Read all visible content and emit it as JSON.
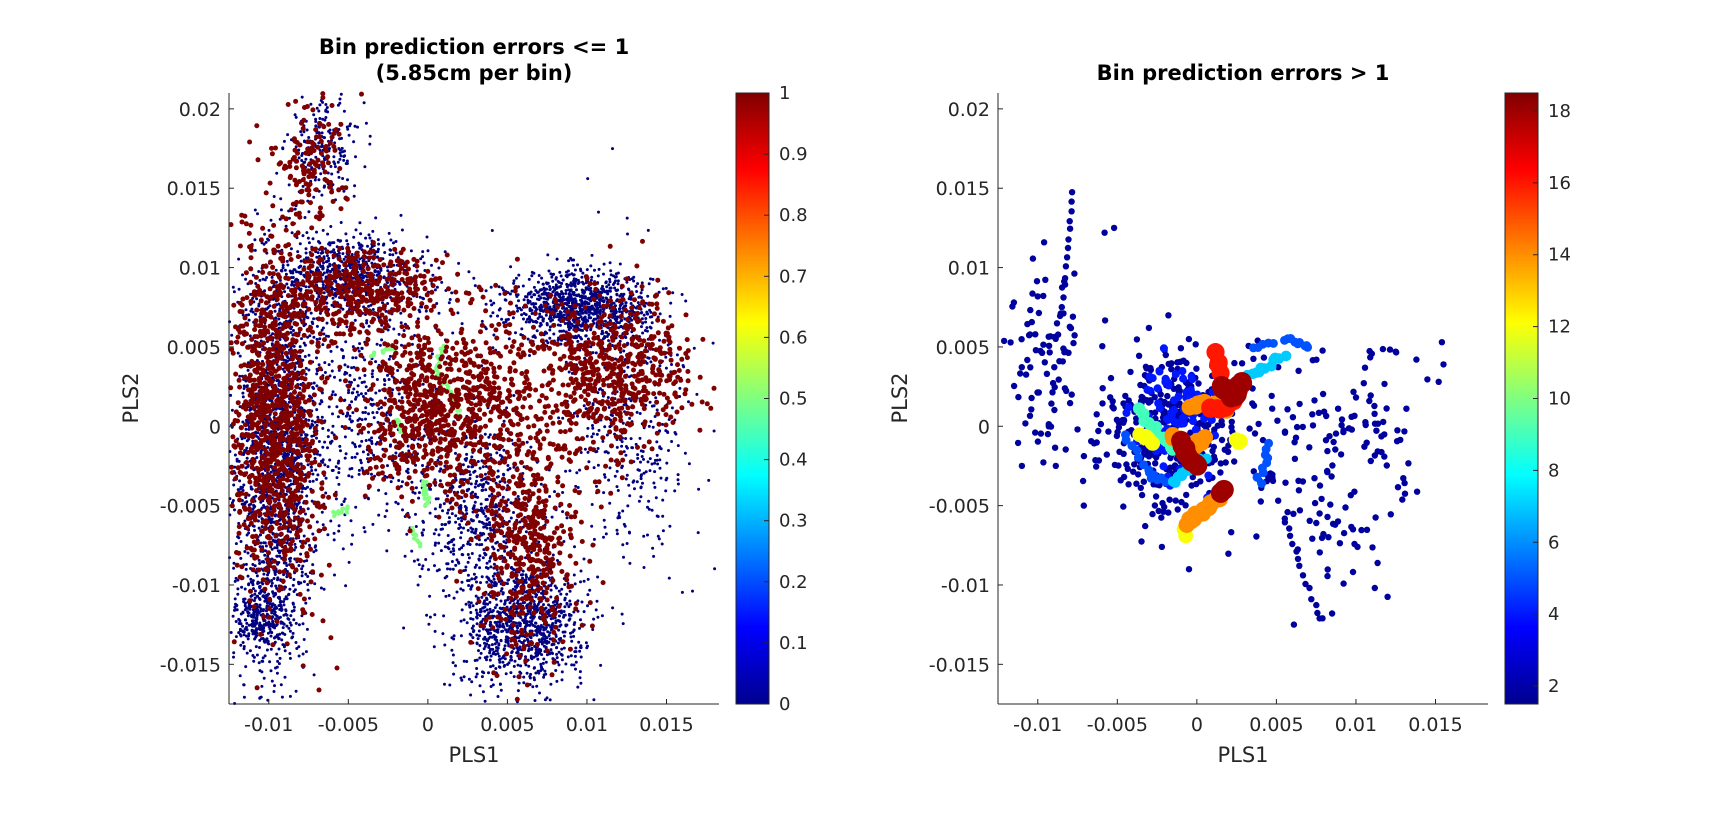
{
  "figure": {
    "background": "#ffffff",
    "colormap": "jet"
  },
  "chart_data": [
    {
      "type": "scatter",
      "title_lines": [
        "Bin prediction errors <= 1",
        "(5.85cm per bin)"
      ],
      "xlabel": "PLS1",
      "ylabel": "PLS2",
      "xlim": [
        -0.0125,
        0.0183
      ],
      "ylim": [
        -0.0175,
        0.021
      ],
      "xticks": [
        -0.01,
        -0.005,
        0,
        0.005,
        0.01,
        0.015
      ],
      "xtick_labels": [
        "-0.01",
        "-0.005",
        "0",
        "0.005",
        "0.01",
        "0.015"
      ],
      "yticks": [
        -0.015,
        -0.01,
        -0.005,
        0,
        0.005,
        0.01,
        0.015,
        0.02
      ],
      "ytick_labels": [
        "-0.015",
        "-0.01",
        "-0.005",
        "0",
        "0.005",
        "0.01",
        "0.015",
        "0.02"
      ],
      "colorbar": {
        "clim": [
          0,
          1
        ],
        "ticks": [
          0,
          0.1,
          0.2,
          0.3,
          0.4,
          0.5,
          0.6,
          0.7,
          0.8,
          0.9,
          1
        ],
        "tick_labels": [
          "0",
          "0.1",
          "0.2",
          "0.3",
          "0.4",
          "0.5",
          "0.6",
          "0.7",
          "0.8",
          "0.9",
          "1"
        ]
      },
      "color_values": [
        0,
        0.5,
        1
      ],
      "point_size_by_value": {
        "0": 1.5,
        "0.5": 2.2,
        "1": 2.5
      },
      "clusters": [
        {
          "value": 0,
          "type": "blob",
          "cx": -0.0095,
          "cy": -0.002,
          "sx": 0.0013,
          "sy": 0.0065,
          "n": 1700
        },
        {
          "value": 0,
          "type": "blob",
          "cx": -0.0105,
          "cy": -0.012,
          "sx": 0.0008,
          "sy": 0.0012,
          "n": 300
        },
        {
          "value": 0,
          "type": "blob",
          "cx": -0.005,
          "cy": 0.0095,
          "sx": 0.0025,
          "sy": 0.0013,
          "n": 700
        },
        {
          "value": 0,
          "type": "blob",
          "cx": -0.0065,
          "cy": 0.0175,
          "sx": 0.0012,
          "sy": 0.0015,
          "n": 200
        },
        {
          "value": 0,
          "type": "blob",
          "cx": 0.0095,
          "cy": 0.0075,
          "sx": 0.0022,
          "sy": 0.0011,
          "n": 1000
        },
        {
          "value": 0,
          "type": "blob",
          "cx": 0.006,
          "cy": -0.0125,
          "sx": 0.0019,
          "sy": 0.0019,
          "n": 1000
        },
        {
          "value": 0,
          "type": "blob",
          "cx": 0.003,
          "cy": -0.005,
          "sx": 0.002,
          "sy": 0.003,
          "n": 600
        },
        {
          "value": 0,
          "type": "blob",
          "cx": -0.004,
          "cy": 0.001,
          "sx": 0.0025,
          "sy": 0.004,
          "n": 500
        },
        {
          "value": 0,
          "type": "blob",
          "cx": 0.0125,
          "cy": 0.0005,
          "sx": 0.0021,
          "sy": 0.0045,
          "n": 450
        },
        {
          "value": 1,
          "type": "blob",
          "cx": -0.0095,
          "cy": 0.0005,
          "sx": 0.0014,
          "sy": 0.0055,
          "n": 1100
        },
        {
          "value": 1,
          "type": "blob",
          "cx": -0.004,
          "cy": 0.0085,
          "sx": 0.0024,
          "sy": 0.0014,
          "n": 400
        },
        {
          "value": 1,
          "type": "blob",
          "cx": -0.0075,
          "cy": 0.0165,
          "sx": 0.0012,
          "sy": 0.0018,
          "n": 130
        },
        {
          "value": 1,
          "type": "blob",
          "cx": 0,
          "cy": 0.0005,
          "sx": 0.002,
          "sy": 0.0025,
          "n": 550
        },
        {
          "value": 1,
          "type": "blob",
          "cx": 0.0115,
          "cy": 0.0035,
          "sx": 0.0025,
          "sy": 0.0025,
          "n": 600
        },
        {
          "value": 1,
          "type": "blob",
          "cx": 0.0065,
          "cy": -0.0075,
          "sx": 0.0015,
          "sy": 0.0035,
          "n": 450
        },
        {
          "value": 1,
          "type": "blob",
          "cx": 0.004,
          "cy": 0.002,
          "sx": 0.0018,
          "sy": 0.003,
          "n": 300
        },
        {
          "value": 0.5,
          "type": "path",
          "points": [
            [
              0.001,
              0.005
            ],
            [
              0.0005,
              0.0035
            ],
            [
              0.0015,
              0.002
            ],
            [
              0.002,
              0.0005
            ]
          ],
          "n": 45
        },
        {
          "value": 0.5,
          "type": "path",
          "points": [
            [
              -0.002,
              0.0005
            ],
            [
              -0.0015,
              -0.0005
            ]
          ],
          "n": 18
        },
        {
          "value": 0.5,
          "type": "path",
          "points": [
            [
              -0.0003,
              -0.0035
            ],
            [
              0,
              -0.005
            ]
          ],
          "n": 22
        },
        {
          "value": 0.5,
          "type": "path",
          "points": [
            [
              -0.006,
              -0.0055
            ],
            [
              -0.005,
              -0.0052
            ]
          ],
          "n": 12
        },
        {
          "value": 0.5,
          "type": "path",
          "points": [
            [
              -0.001,
              -0.0065
            ],
            [
              -0.0005,
              -0.0075
            ]
          ],
          "n": 10
        },
        {
          "value": 0.5,
          "type": "path",
          "points": [
            [
              -0.0035,
              0.0045
            ],
            [
              -0.002,
              0.005
            ]
          ],
          "n": 10
        }
      ]
    },
    {
      "type": "scatter",
      "title_lines": [
        "Bin prediction errors > 1"
      ],
      "xlabel": "PLS1",
      "ylabel": "PLS2",
      "xlim": [
        -0.0125,
        0.0183
      ],
      "ylim": [
        -0.0175,
        0.021
      ],
      "xticks": [
        -0.01,
        -0.005,
        0,
        0.005,
        0.01,
        0.015
      ],
      "xtick_labels": [
        "-0.01",
        "-0.005",
        "0",
        "0.005",
        "0.01",
        "0.015"
      ],
      "yticks": [
        -0.015,
        -0.01,
        -0.005,
        0,
        0.005,
        0.01,
        0.015,
        0.02
      ],
      "ytick_labels": [
        "-0.015",
        "-0.01",
        "-0.005",
        "0",
        "0.005",
        "0.01",
        "0.015",
        "0.02"
      ],
      "colorbar": {
        "clim": [
          1.5,
          18.5
        ],
        "ticks": [
          2,
          4,
          6,
          8,
          10,
          12,
          14,
          16,
          18
        ],
        "tick_labels": [
          "2",
          "4",
          "6",
          "8",
          "10",
          "12",
          "14",
          "16",
          "18"
        ]
      },
      "point_size_rule": "radius grows with error value",
      "clusters": [
        {
          "value": 2,
          "type": "blob",
          "cx": -0.0015,
          "cy": -0.0005,
          "sx": 0.0022,
          "sy": 0.0025,
          "n": 420
        },
        {
          "value": 2,
          "type": "blob",
          "cx": -0.0095,
          "cy": 0.0045,
          "sx": 0.0014,
          "sy": 0.0035,
          "n": 90
        },
        {
          "value": 2,
          "type": "blob",
          "cx": 0.0075,
          "cy": -0.003,
          "sx": 0.0025,
          "sy": 0.0035,
          "n": 120
        },
        {
          "value": 2,
          "type": "blob",
          "cx": 0.0115,
          "cy": 0.0005,
          "sx": 0.0015,
          "sy": 0.0025,
          "n": 35
        },
        {
          "value": 2,
          "type": "path",
          "points": [
            [
              -0.0085,
              0.007
            ],
            [
              -0.0078,
              0.0148
            ]
          ],
          "n": 14
        },
        {
          "value": 2,
          "type": "path",
          "points": [
            [
              0.0055,
              -0.006
            ],
            [
              0.0078,
              -0.0122
            ]
          ],
          "n": 14
        },
        {
          "value": 2,
          "type": "points",
          "points": [
            [
              -0.0115,
              0.0078
            ],
            [
              0.0154,
              0.0053
            ],
            [
              0.0155,
              0.0039
            ],
            [
              0.0152,
              0.0028
            ],
            [
              0.0138,
              0.0042
            ],
            [
              0.0125,
              0.0047
            ],
            [
              -0.0052,
              0.0125
            ],
            [
              -0.0058,
              0.0122
            ],
            [
              -0.011,
              -0.0025
            ],
            [
              0.0061,
              -0.0125
            ],
            [
              0.0079,
              -0.0121
            ],
            [
              0.0085,
              -0.0118
            ]
          ]
        },
        {
          "value": 4,
          "type": "blob",
          "cx": -0.001,
          "cy": 0.0005,
          "sx": 0.0014,
          "sy": 0.0016,
          "n": 100
        },
        {
          "value": 5,
          "type": "path",
          "points": [
            [
              -0.0045,
              -0.0005
            ],
            [
              -0.003,
              -0.003
            ],
            [
              -0.002,
              -0.0035
            ]
          ],
          "n": 14
        },
        {
          "value": 5,
          "type": "path",
          "points": [
            [
              0.0045,
              -0.0012
            ],
            [
              0.004,
              -0.0035
            ]
          ],
          "n": 9
        },
        {
          "value": 5,
          "type": "path",
          "points": [
            [
              0.0035,
              0.005
            ],
            [
              0.0058,
              0.0055
            ],
            [
              0.007,
              0.005
            ]
          ],
          "n": 14
        },
        {
          "value": 7,
          "type": "path",
          "points": [
            [
              0.003,
              0.003
            ],
            [
              0.0055,
              0.0045
            ]
          ],
          "n": 12
        },
        {
          "value": 7,
          "type": "path",
          "points": [
            [
              -0.0015,
              -0.0035
            ],
            [
              0.0005,
              -0.002
            ]
          ],
          "n": 14
        },
        {
          "value": 9,
          "type": "path",
          "points": [
            [
              -0.0035,
              0.001
            ],
            [
              -0.0025,
              -0.0005
            ],
            [
              -0.0015,
              -0.0015
            ]
          ],
          "n": 12
        },
        {
          "value": 12,
          "type": "path",
          "points": [
            [
              -0.0035,
              -0.0005
            ],
            [
              -0.0028,
              -0.001
            ]
          ],
          "n": 6
        },
        {
          "value": 12,
          "type": "path",
          "points": [
            [
              0.0025,
              -0.0008
            ],
            [
              0.0028,
              -0.001
            ]
          ],
          "n": 3
        },
        {
          "value": 12,
          "type": "points",
          "points": [
            [
              -0.0007,
              -0.0069
            ],
            [
              -0.0008,
              -0.0065
            ]
          ]
        },
        {
          "value": 14,
          "type": "path",
          "points": [
            [
              -0.0006,
              -0.0062
            ],
            [
              0.0017,
              -0.0042
            ]
          ],
          "n": 18
        },
        {
          "value": 14,
          "type": "path",
          "points": [
            [
              -0.0005,
              0.0012
            ],
            [
              0.0008,
              0.0015
            ],
            [
              0.0018,
              0.001
            ]
          ],
          "n": 10
        },
        {
          "value": 14,
          "type": "path",
          "points": [
            [
              -0.0015,
              -0.0005
            ],
            [
              -0.0005,
              -0.0015
            ],
            [
              0.0005,
              -0.0008
            ]
          ],
          "n": 12
        },
        {
          "value": 16,
          "type": "path",
          "points": [
            [
              0.0008,
              0.001
            ],
            [
              0.0018,
              0.0012
            ],
            [
              0.0025,
              0.002
            ]
          ],
          "n": 10
        },
        {
          "value": 16,
          "type": "path",
          "points": [
            [
              0.0012,
              0.0045
            ],
            [
              0.0015,
              0.0035
            ]
          ],
          "n": 4
        },
        {
          "value": 18,
          "type": "path",
          "points": [
            [
              0.0015,
              0.0025
            ],
            [
              0.0024,
              0.0018
            ],
            [
              0.0028,
              0.0028
            ]
          ],
          "n": 14
        },
        {
          "value": 18,
          "type": "path",
          "points": [
            [
              -0.001,
              -0.001
            ],
            [
              -0.0005,
              -0.002
            ],
            [
              0,
              -0.0025
            ]
          ],
          "n": 10
        },
        {
          "value": 18,
          "type": "points",
          "points": [
            [
              0.0017,
              -0.004
            ],
            [
              0.0015,
              -0.0042
            ]
          ]
        }
      ]
    }
  ]
}
